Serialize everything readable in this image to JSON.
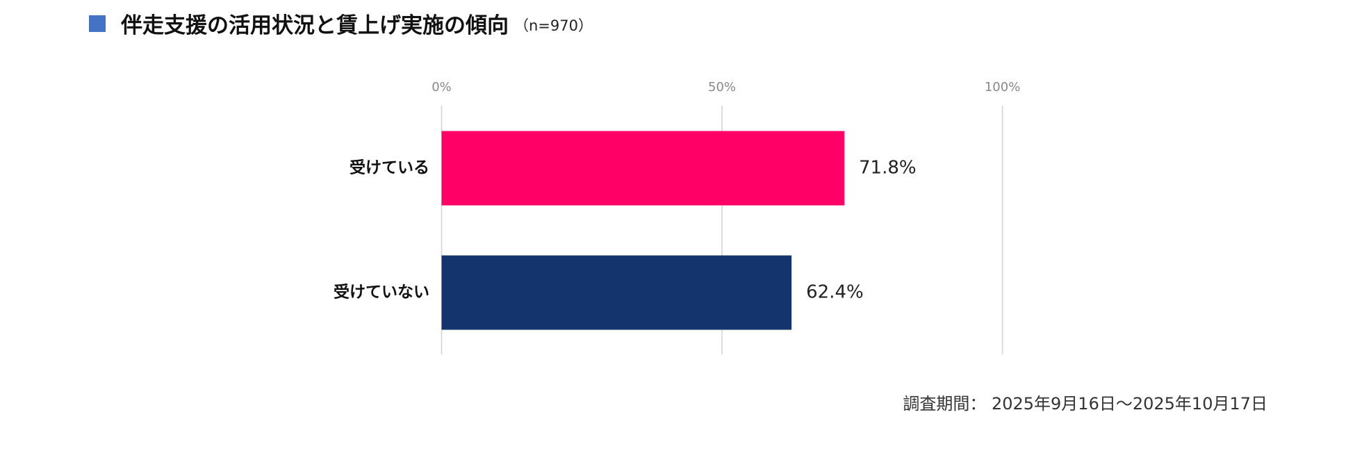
{
  "chart_data": {
    "type": "barh",
    "title": "伴走支援の活用状況と賃上げ実施の傾向",
    "subtitle": "（n=970）",
    "categories": [
      "受けている",
      "受けていない"
    ],
    "values": [
      71.8,
      62.4
    ],
    "value_labels": [
      "71.8%",
      "62.4%"
    ],
    "colors": [
      "#ff0066",
      "#14346e"
    ],
    "xlim": [
      0,
      100
    ],
    "xticks": [
      {
        "value": 0,
        "label": "0%"
      },
      {
        "value": 50,
        "label": "50%"
      },
      {
        "value": 100,
        "label": "100%"
      }
    ],
    "grid": true,
    "note": "調査期間： 2025年9月16日～2025年10月17日"
  }
}
